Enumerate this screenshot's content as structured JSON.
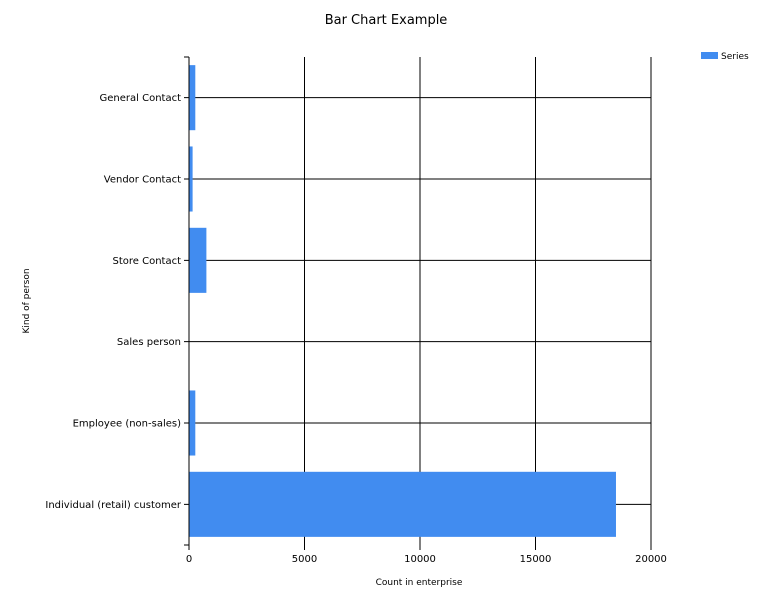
{
  "chart_data": {
    "type": "bar",
    "orientation": "horizontal",
    "title": "Bar Chart Example",
    "xlabel": "Count in enterprise",
    "ylabel": "Kind of person",
    "categories": [
      "General Contact",
      "Vendor Contact",
      "Store Contact",
      "Sales person",
      "Employee (non-sales)",
      "Individual (retail) customer"
    ],
    "series": [
      {
        "name": "Series",
        "color": "#418CF0",
        "values": [
          273,
          156,
          753,
          17,
          273,
          18484
        ]
      }
    ],
    "xlim": [
      0,
      20000
    ],
    "xticks": [
      0,
      5000,
      10000,
      15000,
      20000
    ],
    "grid": true,
    "legend_position": "top-right"
  }
}
